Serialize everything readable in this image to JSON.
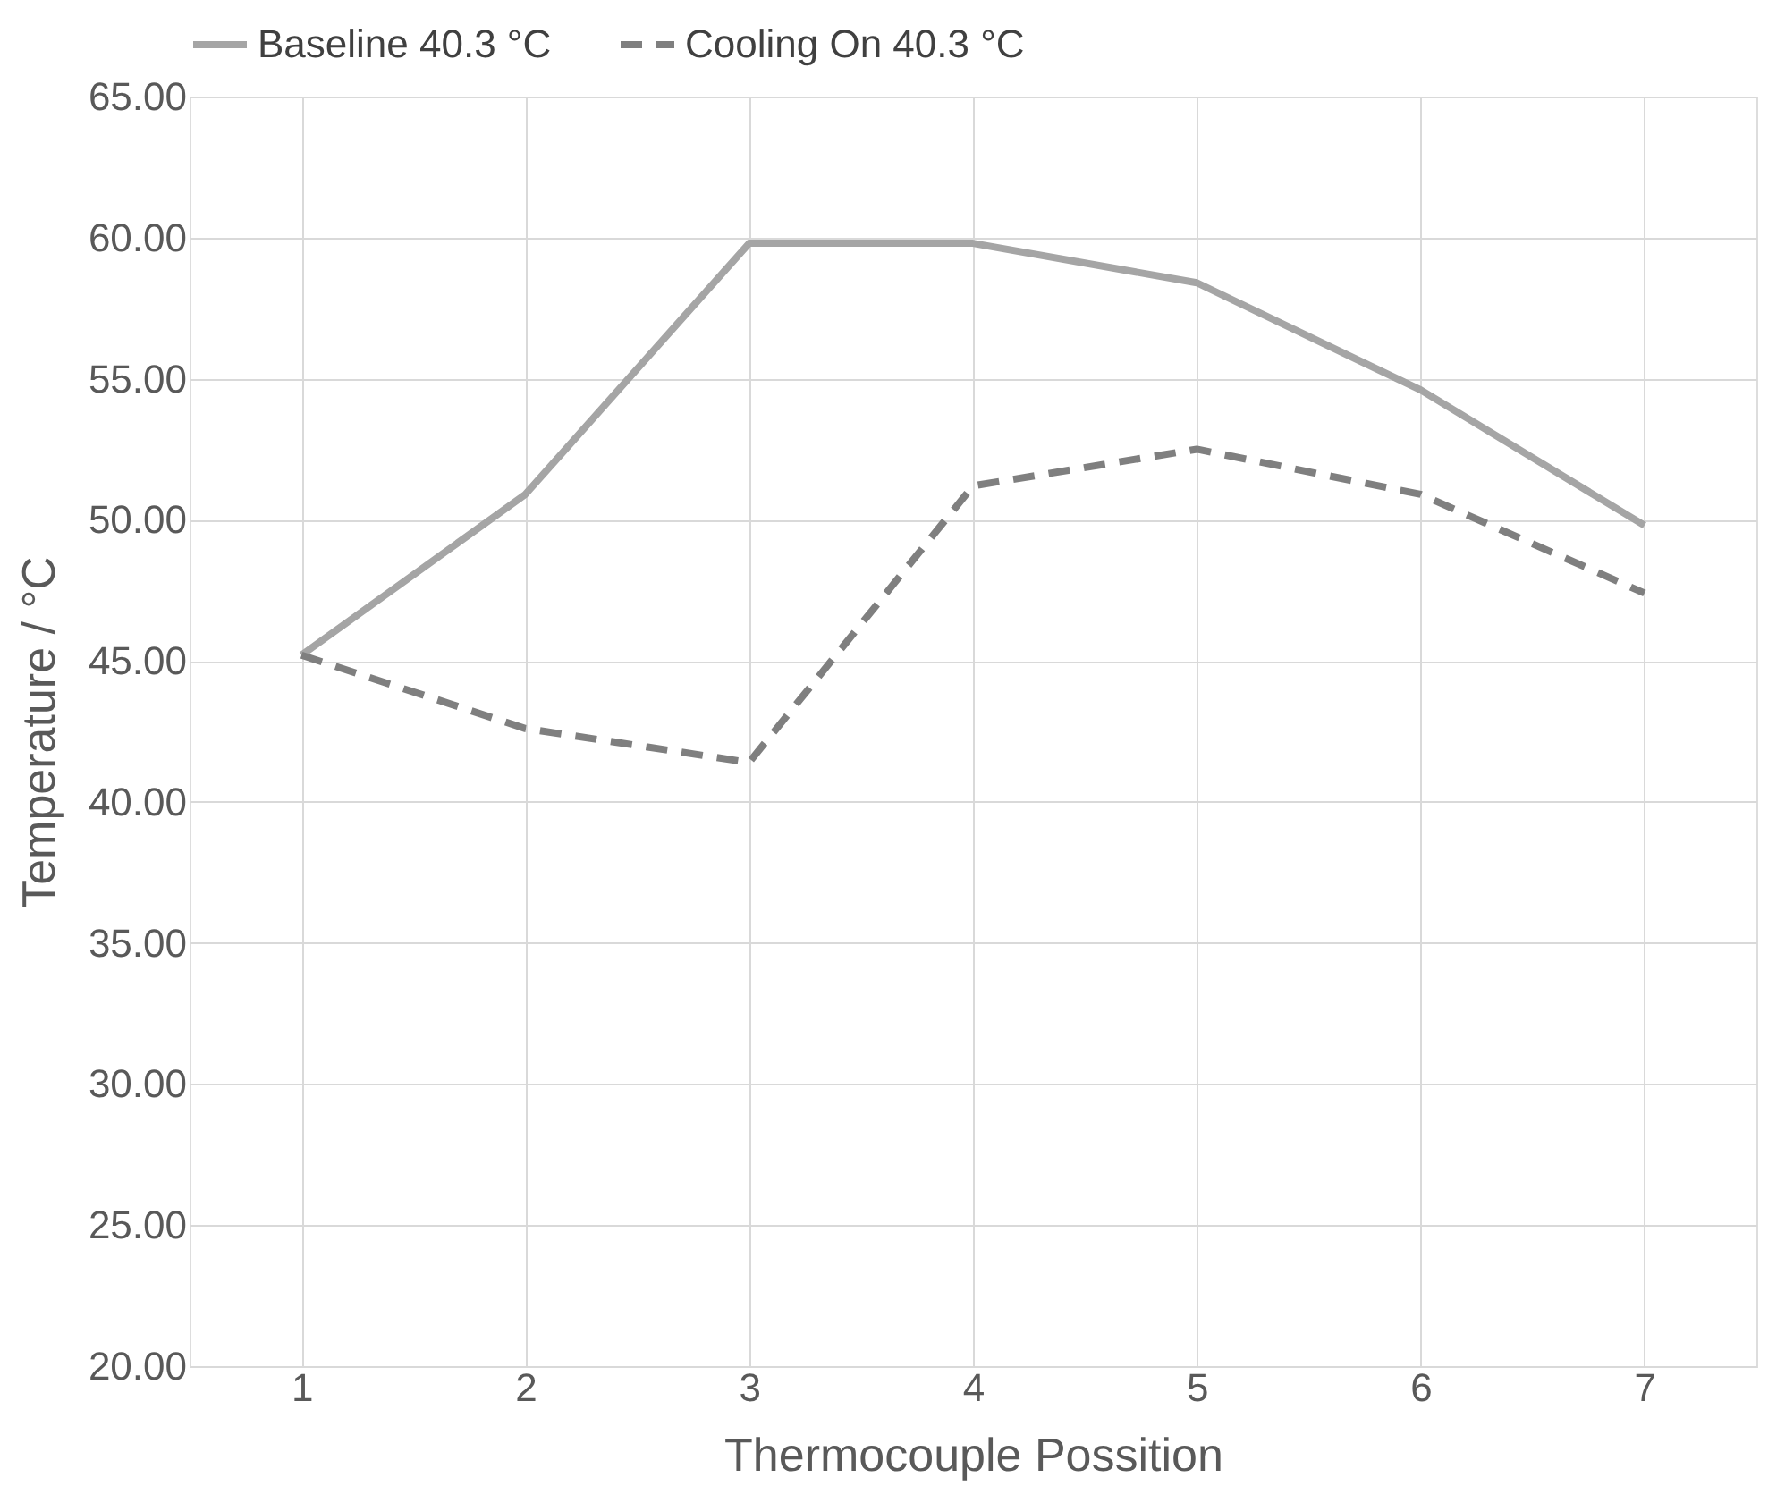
{
  "chart_data": {
    "type": "line",
    "xlabel": "Thermocouple Possition",
    "ylabel": "Temperature / °C",
    "categories": [
      "1",
      "2",
      "3",
      "4",
      "5",
      "6",
      "7"
    ],
    "series": [
      {
        "name": "Baseline 40.3 °C",
        "color": "#a5a5a5",
        "line_style": "solid",
        "values": [
          45.2,
          50.9,
          59.8,
          59.8,
          58.4,
          54.6,
          49.8
        ]
      },
      {
        "name": "Cooling On 40.3 °C",
        "color": "#7f7f7f",
        "line_style": "dashed",
        "values": [
          45.2,
          42.6,
          41.4,
          51.2,
          52.5,
          50.9,
          47.4
        ]
      }
    ],
    "ylim": [
      20,
      65
    ],
    "yticks": [
      {
        "value": 20,
        "label": "20.00"
      },
      {
        "value": 25,
        "label": "25.00"
      },
      {
        "value": 30,
        "label": "30.00"
      },
      {
        "value": 35,
        "label": "35.00"
      },
      {
        "value": 40,
        "label": "40.00"
      },
      {
        "value": 45,
        "label": "45.00"
      },
      {
        "value": 50,
        "label": "50.00"
      },
      {
        "value": 55,
        "label": "55.00"
      },
      {
        "value": 60,
        "label": "60.00"
      },
      {
        "value": 65,
        "label": "65.00"
      }
    ],
    "grid": true,
    "legend": "top",
    "marker": "none"
  }
}
